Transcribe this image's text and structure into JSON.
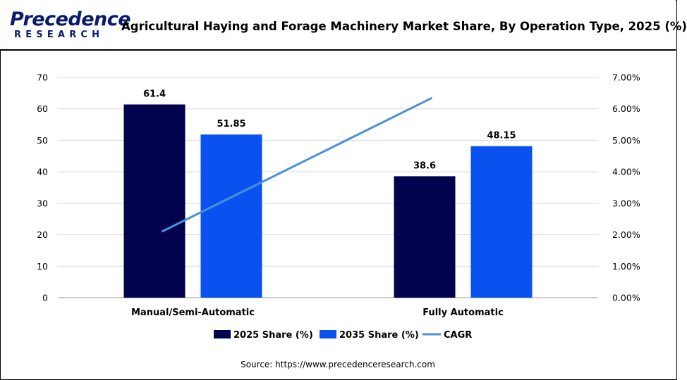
{
  "brand": {
    "name_top": "Precedence",
    "name_bottom": "RESEARCH",
    "color": "#0a1b6b"
  },
  "header": {
    "title": "Agricultural Haying and Forage Machinery Market Share, By Operation Type, 2025 (%)"
  },
  "source": "Source: https://www.precedenceresearch.com",
  "chart_data": {
    "type": "bar",
    "title": "Agricultural Haying and Forage Machinery Market Share, By Operation Type, 2025 (%)",
    "categories": [
      "Manual/Semi-Automatic",
      "Fully Automatic"
    ],
    "series": [
      {
        "name": "2025 Share (%)",
        "type": "bar",
        "axis": "left",
        "color": "#02024f",
        "values": [
          61.4,
          38.6
        ],
        "labels": [
          "61.4",
          "38.6"
        ]
      },
      {
        "name": "2035 Share (%)",
        "type": "bar",
        "axis": "left",
        "color": "#0a52f0",
        "values": [
          51.85,
          48.15
        ],
        "labels": [
          "51.85",
          "48.15"
        ]
      },
      {
        "name": "CAGR",
        "type": "line",
        "axis": "right",
        "color": "#4a90d9",
        "values": [
          2.1,
          6.35
        ]
      }
    ],
    "ylim": [
      0,
      70
    ],
    "y_ticks": [
      "0",
      "10",
      "20",
      "30",
      "40",
      "50",
      "60",
      "70"
    ],
    "y2lim": [
      0,
      7
    ],
    "y2_ticks": [
      "0.00%",
      "1.00%",
      "2.00%",
      "3.00%",
      "4.00%",
      "5.00%",
      "6.00%",
      "7.00%"
    ],
    "grid": true,
    "legend": "bottom"
  }
}
